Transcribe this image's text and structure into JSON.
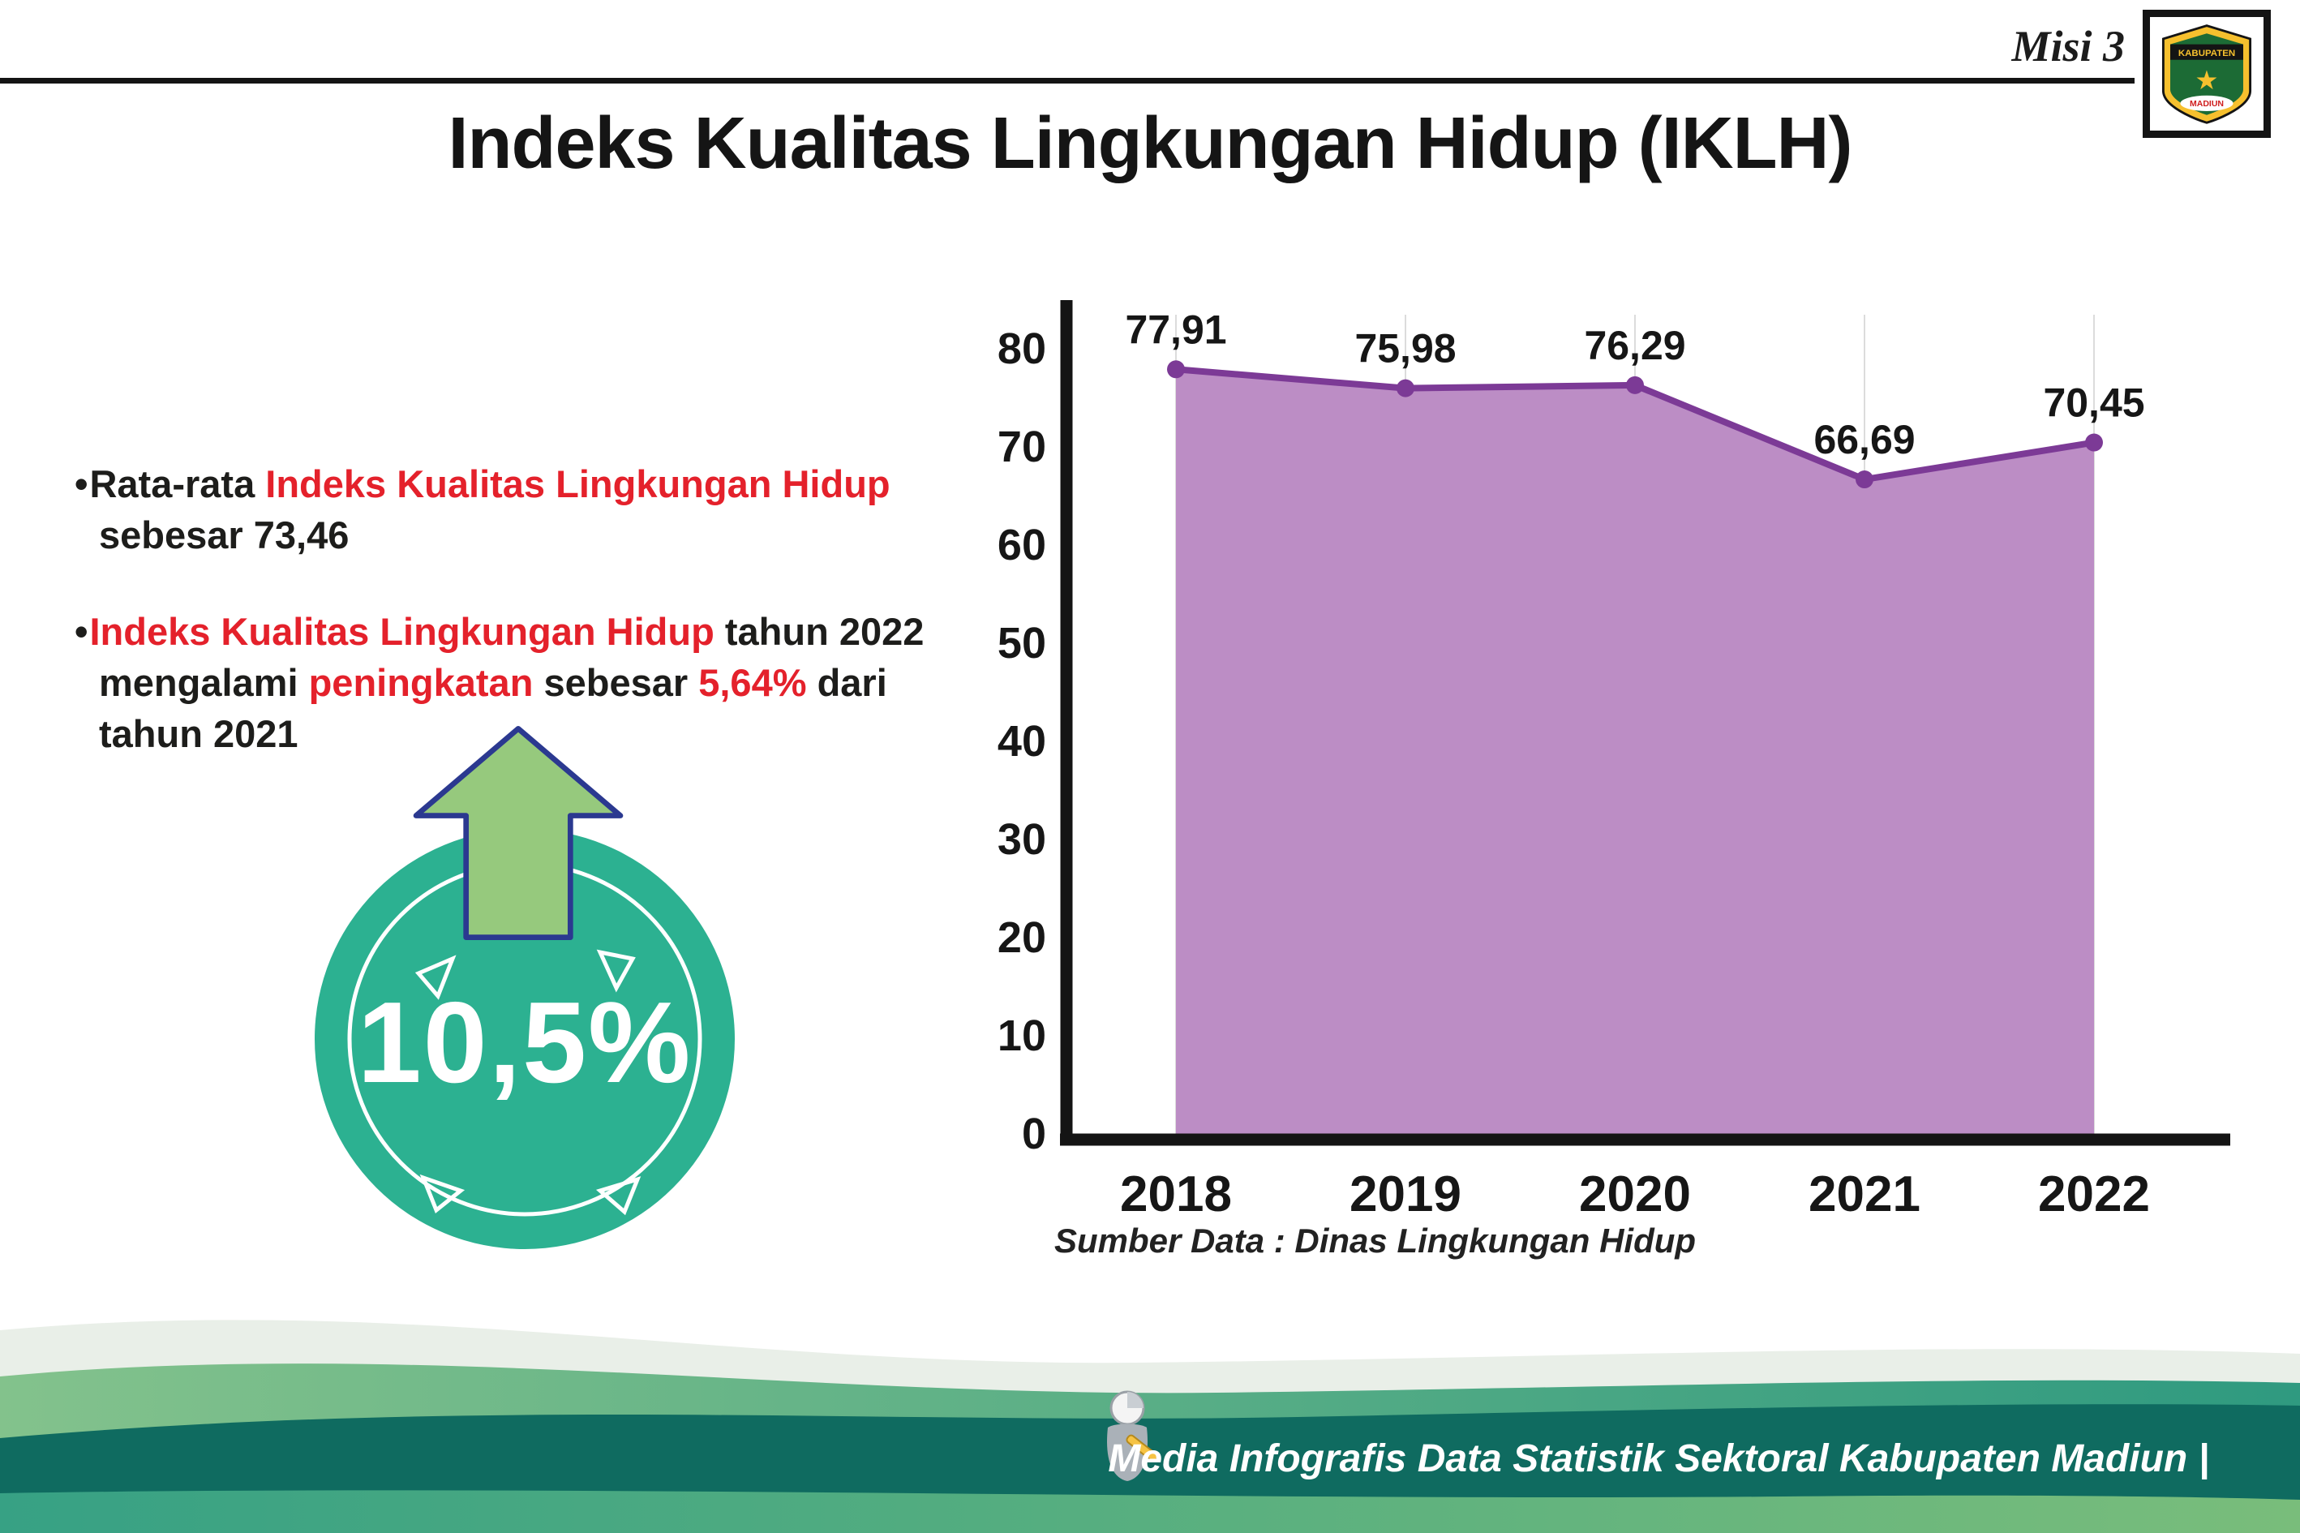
{
  "header": {
    "misi_label": "Misi 3",
    "logo": {
      "name": "kabupaten-madiun-crest",
      "top_text": "KABUPATEN",
      "bottom_text": "MADIUN"
    }
  },
  "title": "Indeks Kualitas Lingkungan Hidup (IKLH)",
  "bullet_char": "•",
  "bullets": [
    {
      "segments": [
        {
          "text": "Rata-rata ",
          "style": "dark"
        },
        {
          "text": "Indeks Kualitas Lingkungan Hidup",
          "style": "red"
        },
        {
          "text": " sebesar 73,46",
          "style": "dark"
        }
      ]
    },
    {
      "segments": [
        {
          "text": "Indeks Kualitas Lingkungan Hidup",
          "style": "red"
        },
        {
          "text": " tahun 2022 mengalami ",
          "style": "dark"
        },
        {
          "text": "peningkatan",
          "style": "red"
        },
        {
          "text": " sebesar ",
          "style": "dark"
        },
        {
          "text": "5,64%",
          "style": "red"
        },
        {
          "text": " dari tahun 2021",
          "style": "dark"
        }
      ]
    }
  ],
  "badge": {
    "value": "10,5%"
  },
  "chart_data": {
    "type": "area",
    "categories": [
      "2018",
      "2019",
      "2020",
      "2021",
      "2022"
    ],
    "values": [
      77.91,
      75.98,
      76.29,
      66.69,
      70.45
    ],
    "value_labels": [
      "77,91",
      "75,98",
      "76,29",
      "66,69",
      "70,45"
    ],
    "ylim": [
      0,
      80
    ],
    "yticks": [
      0,
      10,
      20,
      30,
      40,
      50,
      60,
      70,
      80
    ],
    "grid": "vertical-light",
    "legend": "none",
    "area_fill": "#bc8dc5",
    "line_color": "#7c3a96",
    "source_note": "Sumber Data : Dinas Lingkungan Hidup"
  },
  "footer": {
    "credit": "Media Infografis Data Statistik Sektoral Kabupaten Madiun |"
  },
  "colors": {
    "accent_red": "#e4212b",
    "badge_teal": "#2cb191",
    "arrow_green": "#96c97d",
    "arrow_outline_navy": "#2b3990",
    "footer_dark_teal": "#0f6b60",
    "footer_mid_green": "#5fae85",
    "chart_area_purple": "#bc8dc5",
    "chart_line_purple": "#7c3a96"
  }
}
